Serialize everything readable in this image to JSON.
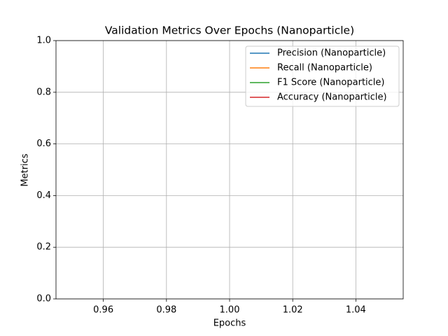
{
  "chart_data": {
    "type": "line",
    "title": "Validation Metrics Over Epochs (Nanoparticle)",
    "xlabel": "Epochs",
    "ylabel": "Metrics",
    "x": [],
    "series": [
      {
        "name": "Precision (Nanoparticle)",
        "color": "#1f77b4",
        "values": []
      },
      {
        "name": "Recall (Nanoparticle)",
        "color": "#ff7f0e",
        "values": []
      },
      {
        "name": "F1 Score (Nanoparticle)",
        "color": "#2ca02c",
        "values": []
      },
      {
        "name": "Accuracy (Nanoparticle)",
        "color": "#d62728",
        "values": []
      }
    ],
    "xlim": [
      0.945,
      1.055
    ],
    "xticks": [
      0.96,
      0.98,
      {
        "value": 1,
        "label": "1.00"
      },
      1.02,
      1.04
    ],
    "ylim": [
      0,
      1
    ],
    "yticks": [
      {
        "value": 0,
        "label": "0.0"
      },
      0.2,
      0.4,
      0.6,
      0.8,
      {
        "value": 1,
        "label": "1.0"
      }
    ],
    "grid": true,
    "legend": "upper right"
  }
}
